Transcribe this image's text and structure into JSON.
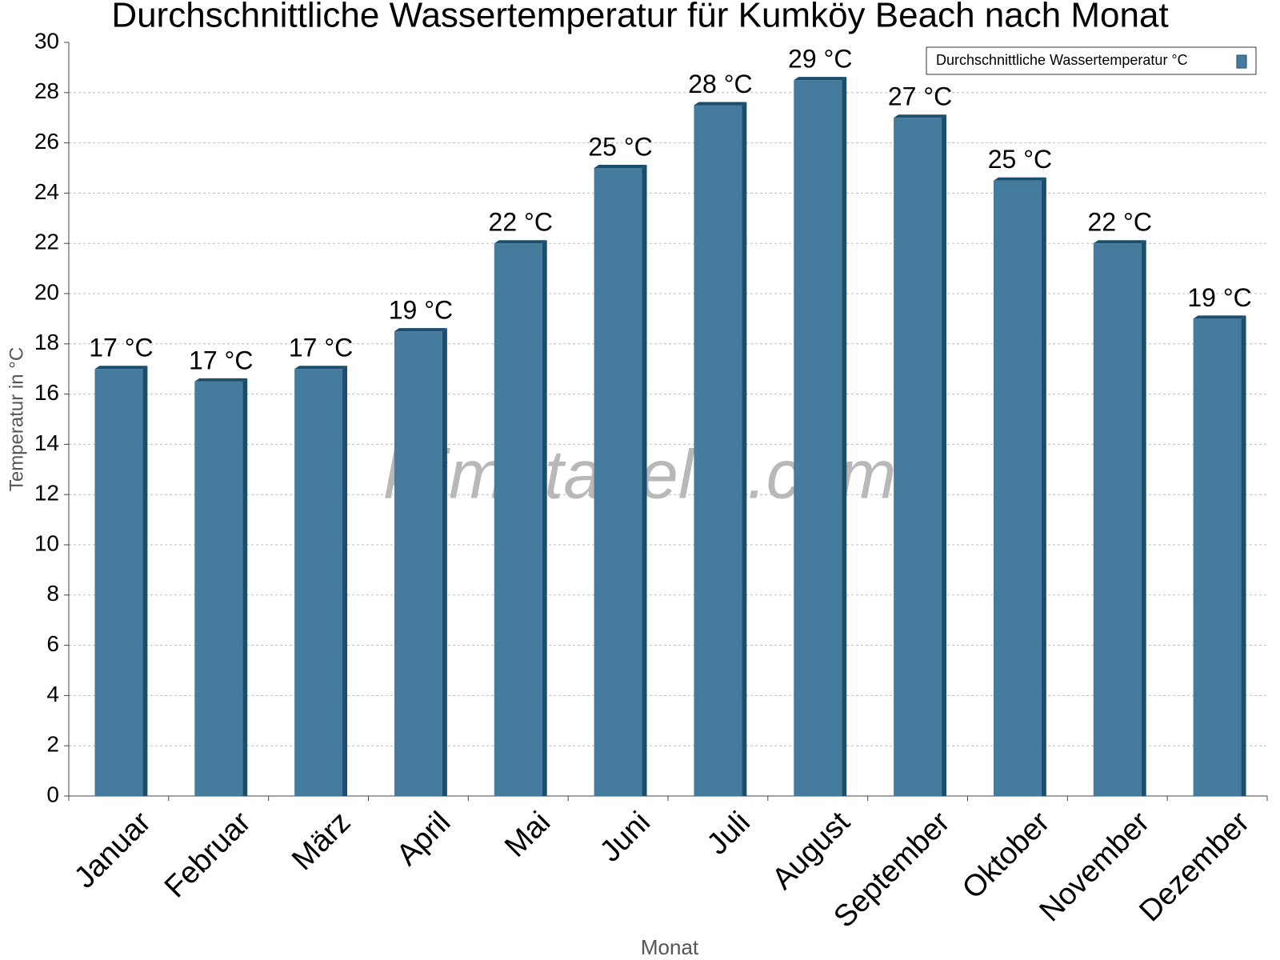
{
  "chart_data": {
    "type": "bar",
    "title": "Durchschnittliche Wassertemperatur für Kumköy Beach nach Monat",
    "x_label": "Monat",
    "y_label": "Temperatur in °C",
    "watermark": "klimatabelle.com",
    "categories": [
      "Januar",
      "Februar",
      "März",
      "April",
      "Mai",
      "Juni",
      "Juli",
      "August",
      "September",
      "Oktober",
      "November",
      "Dezember"
    ],
    "series": [
      {
        "name": "Durchschnittliche Wassertemperatur °C",
        "color": "#457b9d",
        "values": [
          17,
          16.5,
          17,
          18.5,
          22,
          25,
          27.5,
          28.5,
          27,
          24.5,
          22,
          19
        ],
        "value_labels": [
          "17 °C",
          "17 °C",
          "17 °C",
          "19 °C",
          "22 °C",
          "25 °C",
          "28 °C",
          "29 °C",
          "27 °C",
          "25 °C",
          "22 °C",
          "19 °C"
        ]
      }
    ],
    "ylim": [
      0,
      30
    ],
    "yticks": [
      0,
      2,
      4,
      6,
      8,
      10,
      12,
      14,
      16,
      18,
      20,
      22,
      24,
      26,
      28,
      30
    ],
    "grid": true,
    "legend": "top-right"
  }
}
